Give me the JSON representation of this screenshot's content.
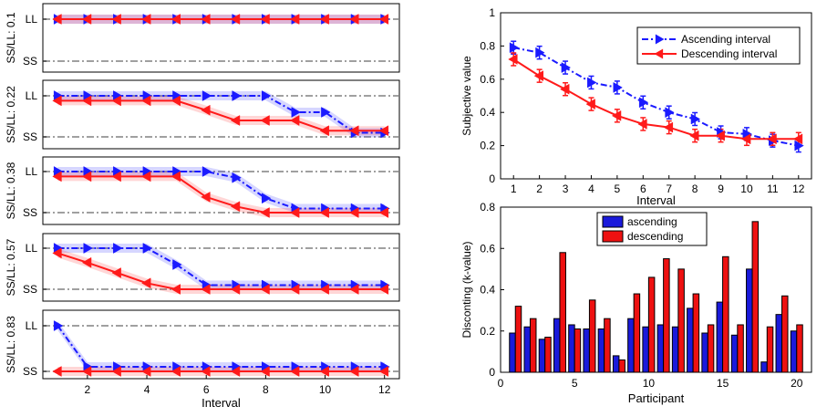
{
  "colors": {
    "ascending_line": "#1a1aff",
    "descending_line": "#ff1a1a",
    "ascending_bar": "#1a1adb",
    "descending_bar": "#ee1111",
    "reference_line": "#808080"
  },
  "chart_data": [
    {
      "type": "line",
      "panel": "choice-panel-1",
      "ylabel": "SS/LL: 0.1",
      "ytick_labels": [
        "LL",
        "SS"
      ],
      "ylim": [
        0,
        1
      ],
      "x": [
        1,
        2,
        3,
        4,
        5,
        6,
        7,
        8,
        9,
        10,
        11,
        12
      ],
      "series": [
        {
          "name": "Ascending interval",
          "values": [
            1,
            1,
            1,
            1,
            1,
            1,
            1,
            1,
            1,
            1,
            1,
            1
          ]
        },
        {
          "name": "Descending interval",
          "values": [
            1,
            1,
            1,
            1,
            1,
            1,
            1,
            1,
            1,
            1,
            1,
            1
          ]
        }
      ]
    },
    {
      "type": "line",
      "panel": "choice-panel-2",
      "ylabel": "SS/LL: 0.22",
      "ytick_labels": [
        "LL",
        "SS"
      ],
      "ylim": [
        0,
        1
      ],
      "x": [
        1,
        2,
        3,
        4,
        5,
        6,
        7,
        8,
        9,
        10,
        11,
        12
      ],
      "series": [
        {
          "name": "Ascending interval",
          "values": [
            1,
            1,
            1,
            1,
            1,
            1,
            1,
            1,
            0.6,
            0.6,
            0.1,
            0.1
          ]
        },
        {
          "name": "Descending interval",
          "values": [
            0.88,
            0.88,
            0.88,
            0.88,
            0.88,
            0.65,
            0.4,
            0.4,
            0.4,
            0.15,
            0.15,
            0.15
          ]
        }
      ]
    },
    {
      "type": "line",
      "panel": "choice-panel-3",
      "ylabel": "SS/LL: 0.38",
      "ytick_labels": [
        "LL",
        "SS"
      ],
      "ylim": [
        0,
        1
      ],
      "x": [
        1,
        2,
        3,
        4,
        5,
        6,
        7,
        8,
        9,
        10,
        11,
        12
      ],
      "series": [
        {
          "name": "Ascending interval",
          "values": [
            1,
            1,
            1,
            1,
            1,
            1,
            0.85,
            0.35,
            0.1,
            0.1,
            0.1,
            0.1
          ]
        },
        {
          "name": "Descending interval",
          "values": [
            0.88,
            0.88,
            0.88,
            0.88,
            0.88,
            0.38,
            0.15,
            0,
            0,
            0,
            0,
            0
          ]
        }
      ]
    },
    {
      "type": "line",
      "panel": "choice-panel-4",
      "ylabel": "SS/LL: 0.57",
      "ytick_labels": [
        "LL",
        "SS"
      ],
      "ylim": [
        0,
        1
      ],
      "x": [
        1,
        2,
        3,
        4,
        5,
        6,
        7,
        8,
        9,
        10,
        11,
        12
      ],
      "series": [
        {
          "name": "Ascending interval",
          "values": [
            1,
            1,
            1,
            1,
            0.6,
            0.1,
            0.1,
            0.1,
            0.1,
            0.1,
            0.1,
            0.1
          ]
        },
        {
          "name": "Descending interval",
          "values": [
            0.88,
            0.65,
            0.4,
            0.15,
            0,
            0,
            0,
            0,
            0,
            0,
            0,
            0
          ]
        }
      ]
    },
    {
      "type": "line",
      "panel": "choice-panel-5",
      "ylabel": "SS/LL: 0.83",
      "ytick_labels": [
        "LL",
        "SS"
      ],
      "ylim": [
        0,
        1
      ],
      "x": [
        1,
        2,
        3,
        4,
        5,
        6,
        7,
        8,
        9,
        10,
        11,
        12
      ],
      "xticks": [
        2,
        4,
        6,
        8,
        10,
        12
      ],
      "xlabel": "Interval",
      "series": [
        {
          "name": "Ascending interval",
          "values": [
            1,
            0.1,
            0.1,
            0.1,
            0.1,
            0.1,
            0.1,
            0.1,
            0.1,
            0.1,
            0.1,
            0.1
          ]
        },
        {
          "name": "Descending interval",
          "values": [
            0,
            0,
            0,
            0,
            0,
            0,
            0,
            0,
            0,
            0,
            0,
            0
          ]
        }
      ]
    },
    {
      "type": "line",
      "panel": "subjective-value",
      "ylabel": "Subjective value",
      "xlabel": "Interval",
      "xlim": [
        0.5,
        12.5
      ],
      "ylim": [
        0,
        1
      ],
      "yticks": [
        0,
        0.2,
        0.4,
        0.6,
        0.8,
        1
      ],
      "x": [
        1,
        2,
        3,
        4,
        5,
        6,
        7,
        8,
        9,
        10,
        11,
        12
      ],
      "legend_position": "top-right",
      "series": [
        {
          "name": "Ascending interval",
          "values": [
            0.79,
            0.76,
            0.67,
            0.58,
            0.55,
            0.46,
            0.4,
            0.36,
            0.28,
            0.27,
            0.23,
            0.2
          ]
        },
        {
          "name": "Descending interval",
          "values": [
            0.72,
            0.62,
            0.54,
            0.45,
            0.38,
            0.33,
            0.31,
            0.26,
            0.26,
            0.24,
            0.24,
            0.24
          ]
        }
      ]
    },
    {
      "type": "bar",
      "panel": "discounting",
      "ylabel": "Disconting (k-value)",
      "xlabel": "Participant",
      "xlim": [
        0,
        21
      ],
      "ylim": [
        0,
        0.8
      ],
      "xticks": [
        0,
        5,
        10,
        15,
        20
      ],
      "yticks": [
        0,
        0.2,
        0.4,
        0.6,
        0.8
      ],
      "legend_position": "top-center",
      "categories": [
        1,
        2,
        3,
        4,
        5,
        6,
        7,
        8,
        9,
        10,
        11,
        12,
        13,
        14,
        15,
        16,
        17,
        18,
        19,
        20
      ],
      "series": [
        {
          "name": "ascending",
          "values": [
            0.19,
            0.22,
            0.16,
            0.26,
            0.23,
            0.21,
            0.21,
            0.08,
            0.26,
            0.22,
            0.23,
            0.22,
            0.31,
            0.19,
            0.34,
            0.18,
            0.5,
            0.05,
            0.28,
            0.2
          ]
        },
        {
          "name": "descending",
          "values": [
            0.32,
            0.26,
            0.17,
            0.58,
            0.21,
            0.35,
            0.26,
            0.06,
            0.38,
            0.46,
            0.55,
            0.5,
            0.38,
            0.23,
            0.56,
            0.23,
            0.73,
            0.22,
            0.37,
            0.23
          ]
        }
      ]
    }
  ]
}
